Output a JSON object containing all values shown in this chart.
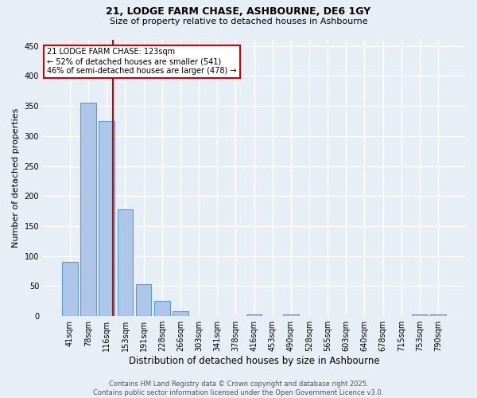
{
  "title_line1": "21, LODGE FARM CHASE, ASHBOURNE, DE6 1GY",
  "title_line2": "Size of property relative to detached houses in Ashbourne",
  "xlabel": "Distribution of detached houses by size in Ashbourne",
  "ylabel": "Number of detached properties",
  "bar_labels": [
    "41sqm",
    "78sqm",
    "116sqm",
    "153sqm",
    "191sqm",
    "228sqm",
    "266sqm",
    "303sqm",
    "341sqm",
    "378sqm",
    "416sqm",
    "453sqm",
    "490sqm",
    "528sqm",
    "565sqm",
    "603sqm",
    "640sqm",
    "678sqm",
    "715sqm",
    "753sqm",
    "790sqm"
  ],
  "bar_values": [
    90,
    355,
    325,
    178,
    53,
    25,
    8,
    0,
    0,
    0,
    3,
    0,
    3,
    0,
    0,
    0,
    0,
    0,
    0,
    3,
    3
  ],
  "bar_color": "#aec6e8",
  "bar_edge_color": "#5b9bd5",
  "vline_color": "#cc0000",
  "annotation_text": "21 LODGE FARM CHASE: 123sqm\n← 52% of detached houses are smaller (541)\n46% of semi-detached houses are larger (478) →",
  "annotation_box_color": "#ffffff",
  "annotation_box_edge": "#cc0000",
  "ylim": [
    0,
    460
  ],
  "yticks": [
    0,
    50,
    100,
    150,
    200,
    250,
    300,
    350,
    400,
    450
  ],
  "background_color": "#e8eef5",
  "plot_bg_color": "#e8eef5",
  "grid_color": "#ffffff",
  "footer_line1": "Contains HM Land Registry data © Crown copyright and database right 2025.",
  "footer_line2": "Contains public sector information licensed under the Open Government Licence v3.0."
}
